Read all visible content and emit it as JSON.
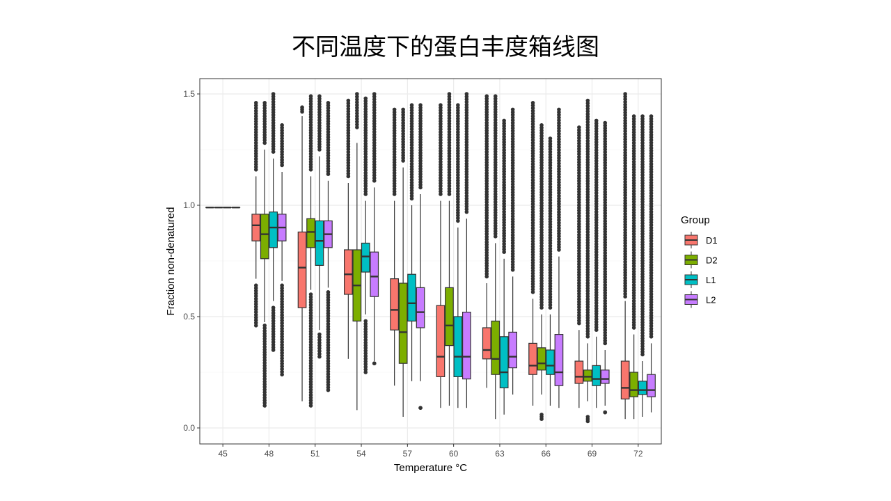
{
  "chart_data": {
    "type": "box",
    "title": "不同温度下的蛋白丰度箱线图",
    "xlabel": "Temperature °C",
    "ylabel": "Fraction non-denatured",
    "ylim": [
      -0.05,
      1.58
    ],
    "yticks": [
      "0.0",
      "0.5",
      "1.0",
      "1.5"
    ],
    "ytick_values": [
      0,
      0.5,
      1.0,
      1.5
    ],
    "grid": true,
    "legend": {
      "title": "Group",
      "placement": "right"
    },
    "categories": [
      "45",
      "48",
      "51",
      "54",
      "57",
      "60",
      "63",
      "66",
      "69",
      "72"
    ],
    "series": [
      {
        "name": "D1",
        "color": "#F8766D",
        "boxes": [
          {
            "min": 0.99,
            "q1": 0.99,
            "median": 0.99,
            "q3": 0.99,
            "max": 0.99,
            "out_high": null,
            "out_low": null
          },
          {
            "min": 0.67,
            "q1": 0.84,
            "median": 0.91,
            "q3": 0.96,
            "max": 1.13,
            "out_high": [
              1.16,
              1.46
            ],
            "out_low": [
              0.46,
              0.64
            ]
          },
          {
            "min": 0.12,
            "q1": 0.54,
            "median": 0.72,
            "q3": 0.88,
            "max": 1.4,
            "out_high": [
              1.42,
              1.44
            ],
            "out_low": null
          },
          {
            "min": 0.31,
            "q1": 0.6,
            "median": 0.69,
            "q3": 0.8,
            "max": 1.1,
            "out_high": [
              1.13,
              1.47
            ],
            "out_low": null
          },
          {
            "min": 0.19,
            "q1": 0.44,
            "median": 0.53,
            "q3": 0.67,
            "max": 1.02,
            "out_high": [
              1.05,
              1.43
            ],
            "out_low": null
          },
          {
            "min": 0.09,
            "q1": 0.23,
            "median": 0.32,
            "q3": 0.55,
            "max": 1.02,
            "out_high": [
              1.05,
              1.45
            ],
            "out_low": null
          },
          {
            "min": 0.18,
            "q1": 0.31,
            "median": 0.35,
            "q3": 0.45,
            "max": 0.65,
            "out_high": [
              0.68,
              1.49
            ],
            "out_low": null
          },
          {
            "min": 0.1,
            "q1": 0.24,
            "median": 0.28,
            "q3": 0.38,
            "max": 0.58,
            "out_high": [
              0.61,
              1.46
            ],
            "out_low": null
          },
          {
            "min": 0.09,
            "q1": 0.2,
            "median": 0.23,
            "q3": 0.3,
            "max": 0.44,
            "out_high": [
              0.47,
              1.35
            ],
            "out_low": null
          },
          {
            "min": 0.04,
            "q1": 0.13,
            "median": 0.18,
            "q3": 0.3,
            "max": 0.57,
            "out_high": [
              0.59,
              1.5
            ],
            "out_low": null
          }
        ]
      },
      {
        "name": "D2",
        "color": "#7CAE00",
        "boxes": [
          {
            "min": 0.99,
            "q1": 0.99,
            "median": 0.99,
            "q3": 0.99,
            "max": 0.99,
            "out_high": null,
            "out_low": null
          },
          {
            "min": 0.475,
            "q1": 0.76,
            "median": 0.87,
            "q3": 0.96,
            "max": 1.25,
            "out_high": [
              1.28,
              1.46
            ],
            "out_low": [
              0.1,
              0.46
            ]
          },
          {
            "min": 0.62,
            "q1": 0.81,
            "median": 0.88,
            "q3": 0.94,
            "max": 1.13,
            "out_high": [
              1.16,
              1.49
            ],
            "out_low": [
              0.1,
              0.6
            ]
          },
          {
            "min": 0.08,
            "q1": 0.48,
            "median": 0.64,
            "q3": 0.8,
            "max": 1.28,
            "out_high": [
              1.35,
              1.5
            ],
            "out_low": null
          },
          {
            "min": 0.05,
            "q1": 0.29,
            "median": 0.43,
            "q3": 0.65,
            "max": 1.17,
            "out_high": [
              1.2,
              1.43
            ],
            "out_low": null
          },
          {
            "min": 0.1,
            "q1": 0.37,
            "median": 0.46,
            "q3": 0.63,
            "max": 1.02,
            "out_high": [
              1.05,
              1.5
            ],
            "out_low": null
          },
          {
            "min": 0.04,
            "q1": 0.24,
            "median": 0.31,
            "q3": 0.48,
            "max": 0.83,
            "out_high": [
              0.86,
              1.49
            ],
            "out_low": null
          },
          {
            "min": 0.15,
            "q1": 0.26,
            "median": 0.29,
            "q3": 0.36,
            "max": 0.51,
            "out_high": [
              0.54,
              1.36
            ],
            "out_low": [
              0.04,
              0.06
            ]
          },
          {
            "min": 0.12,
            "q1": 0.21,
            "median": 0.23,
            "q3": 0.26,
            "max": 0.38,
            "out_high": [
              0.41,
              1.47
            ],
            "out_low": [
              0.03,
              0.05
            ]
          },
          {
            "min": 0.04,
            "q1": 0.14,
            "median": 0.17,
            "q3": 0.25,
            "max": 0.42,
            "out_high": [
              0.45,
              1.4
            ],
            "out_low": null
          }
        ]
      },
      {
        "name": "L1",
        "color": "#00BFC4",
        "boxes": [
          {
            "min": 0.99,
            "q1": 0.99,
            "median": 0.99,
            "q3": 0.99,
            "max": 0.99,
            "out_high": null,
            "out_low": null
          },
          {
            "min": 0.57,
            "q1": 0.81,
            "median": 0.9,
            "q3": 0.97,
            "max": 1.21,
            "out_high": [
              1.24,
              1.5
            ],
            "out_low": [
              0.35,
              0.54
            ]
          },
          {
            "min": 0.44,
            "q1": 0.73,
            "median": 0.84,
            "q3": 0.93,
            "max": 1.22,
            "out_high": [
              1.25,
              1.49
            ],
            "out_low": [
              0.32,
              0.42
            ]
          },
          {
            "min": 0.51,
            "q1": 0.7,
            "median": 0.77,
            "q3": 0.83,
            "max": 1.02,
            "out_high": [
              1.05,
              1.48
            ],
            "out_low": [
              0.25,
              0.48
            ]
          },
          {
            "min": 0.21,
            "q1": 0.48,
            "median": 0.56,
            "q3": 0.69,
            "max": 1.0,
            "out_high": [
              1.03,
              1.45
            ],
            "out_low": null
          },
          {
            "min": 0.09,
            "q1": 0.23,
            "median": 0.32,
            "q3": 0.5,
            "max": 0.9,
            "out_high": [
              0.93,
              1.45
            ],
            "out_low": null
          },
          {
            "min": 0.06,
            "q1": 0.18,
            "median": 0.25,
            "q3": 0.41,
            "max": 0.76,
            "out_high": [
              0.79,
              1.38
            ],
            "out_low": null
          },
          {
            "min": 0.1,
            "q1": 0.24,
            "median": 0.28,
            "q3": 0.35,
            "max": 0.51,
            "out_high": [
              0.54,
              1.3
            ],
            "out_low": null
          },
          {
            "min": 0.09,
            "q1": 0.19,
            "median": 0.22,
            "q3": 0.28,
            "max": 0.41,
            "out_high": [
              0.44,
              1.38
            ],
            "out_low": null
          },
          {
            "min": 0.05,
            "q1": 0.15,
            "median": 0.17,
            "q3": 0.21,
            "max": 0.3,
            "out_high": [
              0.33,
              1.4
            ],
            "out_low": null
          }
        ]
      },
      {
        "name": "L2",
        "color": "#C77CFF",
        "boxes": [
          {
            "min": 0.99,
            "q1": 0.99,
            "median": 0.99,
            "q3": 0.99,
            "max": 0.99,
            "out_high": null,
            "out_low": null
          },
          {
            "min": 0.66,
            "q1": 0.84,
            "median": 0.9,
            "q3": 0.96,
            "max": 1.15,
            "out_high": [
              1.18,
              1.36
            ],
            "out_low": [
              0.24,
              0.64
            ]
          },
          {
            "min": 0.63,
            "q1": 0.81,
            "median": 0.87,
            "q3": 0.93,
            "max": 1.11,
            "out_high": [
              1.14,
              1.46
            ],
            "out_low": [
              0.17,
              0.61
            ]
          },
          {
            "min": 0.3,
            "q1": 0.59,
            "median": 0.68,
            "q3": 0.79,
            "max": 1.08,
            "out_high": [
              1.11,
              1.5
            ],
            "out_low": [
              0.29,
              0.29
            ]
          },
          {
            "min": 0.21,
            "q1": 0.45,
            "median": 0.52,
            "q3": 0.63,
            "max": 1.05,
            "out_high": [
              1.08,
              1.45
            ],
            "out_low": [
              0.09,
              0.09
            ]
          },
          {
            "min": 0.09,
            "q1": 0.22,
            "median": 0.32,
            "q3": 0.52,
            "max": 0.94,
            "out_high": [
              0.97,
              1.5
            ],
            "out_low": null
          },
          {
            "min": 0.15,
            "q1": 0.27,
            "median": 0.32,
            "q3": 0.43,
            "max": 0.68,
            "out_high": [
              0.71,
              1.43
            ],
            "out_low": null
          },
          {
            "min": 0.09,
            "q1": 0.19,
            "median": 0.25,
            "q3": 0.42,
            "max": 0.77,
            "out_high": [
              0.8,
              1.43
            ],
            "out_low": null
          },
          {
            "min": 0.1,
            "q1": 0.2,
            "median": 0.22,
            "q3": 0.26,
            "max": 0.35,
            "out_high": [
              0.38,
              1.37
            ],
            "out_low": [
              0.07,
              0.07
            ]
          },
          {
            "min": 0.07,
            "q1": 0.14,
            "median": 0.17,
            "q3": 0.24,
            "max": 0.38,
            "out_high": [
              0.41,
              1.4
            ],
            "out_low": null
          }
        ]
      }
    ]
  }
}
